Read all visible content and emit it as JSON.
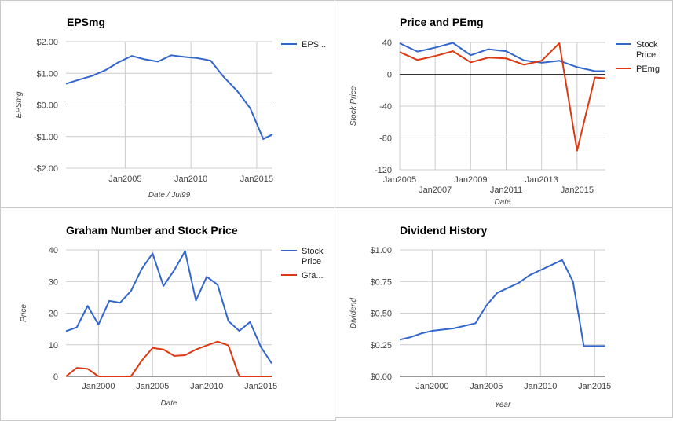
{
  "chart_data": [
    {
      "type": "line",
      "title": "EPSmg",
      "xlabel": "Date / Jul99",
      "ylabel": "EPSmg",
      "x": [
        2000.5,
        2001.5,
        2002.5,
        2003.5,
        2004.5,
        2005.5,
        2006.5,
        2007.5,
        2008.5,
        2009.5,
        2010.5,
        2011.5,
        2012.5,
        2013.5,
        2014.5,
        2015.5,
        2016.2
      ],
      "x_ticks": [
        {
          "value": 2005,
          "label": "Jan2005"
        },
        {
          "value": 2010,
          "label": "Jan2010"
        },
        {
          "value": 2015,
          "label": "Jan2015"
        }
      ],
      "xlim": [
        2000.5,
        2016.2
      ],
      "ylim": [
        -2,
        2
      ],
      "y_ticks": [
        {
          "value": 2,
          "label": "$2.00"
        },
        {
          "value": 1,
          "label": "$1.00"
        },
        {
          "value": 0,
          "label": "$0.00"
        },
        {
          "value": -1,
          "label": "-$1.00"
        },
        {
          "value": -2,
          "label": "-$2.00"
        }
      ],
      "series": [
        {
          "name": "EPS...",
          "color": "#3366cc",
          "values": [
            0.67,
            0.8,
            0.92,
            1.1,
            1.35,
            1.55,
            1.44,
            1.37,
            1.57,
            1.52,
            1.48,
            1.4,
            0.88,
            0.45,
            -0.1,
            -1.08,
            -0.93
          ]
        }
      ],
      "baseline": 0,
      "legend": "right"
    },
    {
      "type": "line",
      "title": "Price and PEmg",
      "xlabel": "Date",
      "ylabel": "Stock Price",
      "x": [
        2005,
        2006,
        2007,
        2008,
        2009,
        2010,
        2011,
        2012,
        2013,
        2014,
        2015,
        2016,
        2016.6
      ],
      "x_ticks": [
        {
          "value": 2005,
          "label": "Jan2005",
          "row": 0
        },
        {
          "value": 2007,
          "label": "Jan2007",
          "row": 1
        },
        {
          "value": 2009,
          "label": "Jan2009",
          "row": 0
        },
        {
          "value": 2011,
          "label": "Jan2011",
          "row": 1
        },
        {
          "value": 2013,
          "label": "Jan2013",
          "row": 0
        },
        {
          "value": 2015,
          "label": "Jan2015",
          "row": 1
        }
      ],
      "xlim": [
        2005,
        2016.6
      ],
      "ylim": [
        -120,
        40
      ],
      "y_ticks": [
        {
          "value": 40,
          "label": "40"
        },
        {
          "value": 0,
          "label": "0"
        },
        {
          "value": -40,
          "label": "-40"
        },
        {
          "value": -80,
          "label": "-80"
        },
        {
          "value": -120,
          "label": "-120"
        }
      ],
      "series": [
        {
          "name": "Stock Price",
          "name_lines": [
            "Stock",
            "Price"
          ],
          "color": "#3366cc",
          "values": [
            39,
            28.5,
            33.5,
            39.5,
            24,
            31.5,
            29,
            17.5,
            14.5,
            17,
            9,
            4,
            4
          ]
        },
        {
          "name": "PEmg",
          "name_lines": [
            "PEmg"
          ],
          "color": "#dc3912",
          "values": [
            28,
            18,
            23,
            29,
            15,
            21,
            20,
            12,
            17,
            39,
            -96,
            -4,
            -5
          ]
        }
      ],
      "baseline": 0,
      "legend": "right"
    },
    {
      "type": "line",
      "title": "Graham Number and Stock Price",
      "xlabel": "Date",
      "ylabel": "Price",
      "x": [
        1997,
        1998,
        1999,
        2000,
        2001,
        2002,
        2003,
        2004,
        2005,
        2006,
        2007,
        2008,
        2009,
        2010,
        2011,
        2012,
        2013,
        2014,
        2015,
        2016
      ],
      "x_ticks": [
        {
          "value": 2000,
          "label": "Jan2000"
        },
        {
          "value": 2005,
          "label": "Jan2005"
        },
        {
          "value": 2010,
          "label": "Jan2010"
        },
        {
          "value": 2015,
          "label": "Jan2015"
        }
      ],
      "xlim": [
        1997,
        2016
      ],
      "ylim": [
        0,
        40
      ],
      "y_ticks": [
        {
          "value": 40,
          "label": "40"
        },
        {
          "value": 30,
          "label": "30"
        },
        {
          "value": 20,
          "label": "20"
        },
        {
          "value": 10,
          "label": "10"
        },
        {
          "value": 0,
          "label": "0"
        }
      ],
      "series": [
        {
          "name": "Stock Price",
          "name_lines": [
            "Stock",
            "Price"
          ],
          "color": "#3366cc",
          "values": [
            14.3,
            15.5,
            22.3,
            16.4,
            23.9,
            23.3,
            27,
            34,
            38.9,
            28.6,
            33.6,
            39.6,
            24,
            31.5,
            29,
            17.5,
            14.4,
            17.2,
            9.3,
            4.1
          ]
        },
        {
          "name": "Gra...",
          "name_lines": [
            "Gra..."
          ],
          "color": "#dc3912",
          "values": [
            0,
            2.7,
            2.4,
            0,
            0,
            0,
            0,
            5,
            9,
            8.5,
            6.5,
            6.7,
            8.5,
            9.8,
            11,
            9.8,
            0,
            0,
            0,
            0
          ]
        }
      ],
      "legend": "right"
    },
    {
      "type": "line",
      "title": "Dividend History",
      "xlabel": "Year",
      "ylabel": "Dividend",
      "x": [
        1997,
        1998,
        1999,
        2000,
        2001,
        2002,
        2003,
        2004,
        2005,
        2006,
        2007,
        2008,
        2009,
        2010,
        2011,
        2012,
        2013,
        2014,
        2015,
        2016
      ],
      "x_ticks": [
        {
          "value": 2000,
          "label": "Jan2000"
        },
        {
          "value": 2005,
          "label": "Jan2005"
        },
        {
          "value": 2010,
          "label": "Jan2010"
        },
        {
          "value": 2015,
          "label": "Jan2015"
        }
      ],
      "xlim": [
        1997,
        2016
      ],
      "ylim": [
        0,
        1
      ],
      "y_ticks": [
        {
          "value": 1,
          "label": "$1.00"
        },
        {
          "value": 0.75,
          "label": "$0.75"
        },
        {
          "value": 0.5,
          "label": "$0.50"
        },
        {
          "value": 0.25,
          "label": "$0.25"
        },
        {
          "value": 0,
          "label": "$0.00"
        }
      ],
      "series": [
        {
          "name": "",
          "color": "#3366cc",
          "values": [
            0.29,
            0.31,
            0.34,
            0.36,
            0.37,
            0.38,
            0.4,
            0.42,
            0.56,
            0.66,
            0.7,
            0.74,
            0.8,
            0.84,
            0.88,
            0.92,
            0.75,
            0.24,
            0.24,
            0.24
          ]
        }
      ],
      "legend": "none"
    }
  ]
}
